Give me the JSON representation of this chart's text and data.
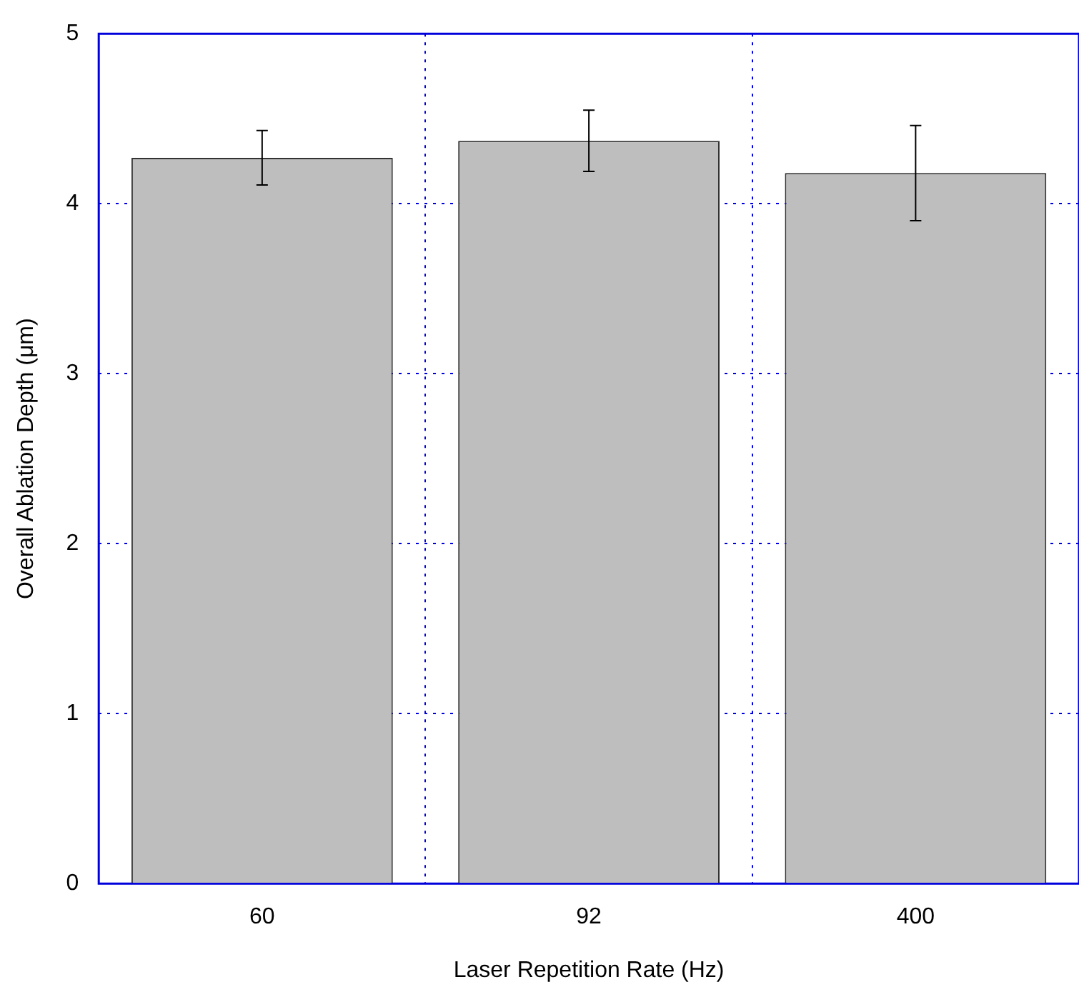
{
  "chart_data": {
    "type": "bar",
    "xlabel": "Laser Repetition Rate (Hz)",
    "ylabel": "Overall Ablation Depth (μm)",
    "categories": [
      "60",
      "92",
      "400"
    ],
    "values": [
      4.27,
      4.37,
      4.18
    ],
    "errors": [
      0.16,
      0.18,
      0.28
    ],
    "color": "#bebebe",
    "ylim": [
      0,
      5
    ],
    "yticks": [
      0,
      1,
      2,
      3,
      4,
      5
    ],
    "grid": true
  }
}
